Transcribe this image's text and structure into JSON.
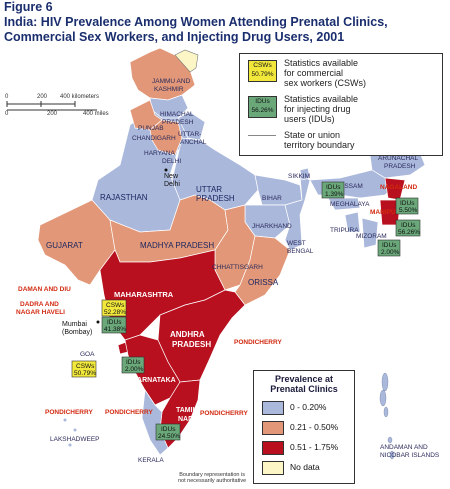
{
  "figure": {
    "label": "Figure 6",
    "title_line1": "India: HIV Prevalence Among Women Attending Prenatal Clinics,",
    "title_line2": "Commercial Sex Workers, and Injecting Drug Users, 2001"
  },
  "legend": {
    "csw_badge_line1": "CSWs",
    "csw_badge_line2": "50.79%",
    "csw_text_line1": "Statistics available",
    "csw_text_line2": "for commercial",
    "csw_text_line3": "sex workers (CSWs)",
    "idu_badge_line1": "IDUs",
    "idu_badge_line2": "56.26%",
    "idu_text_line1": "Statistics available",
    "idu_text_line2": "for injecting drug",
    "idu_text_line3": "users (IDUs)",
    "boundary_text_line1": "State or union",
    "boundary_text_line2": "territory boundary"
  },
  "prevalence_legend": {
    "title_line1": "Prevalence at",
    "title_line2": "Prenatal Clinics",
    "items": [
      {
        "label": "0 - 0.20%",
        "color": "#aab8dc"
      },
      {
        "label": "0.21 - 0.50%",
        "color": "#e29878"
      },
      {
        "label": "0.51 - 1.75%",
        "color": "#b8101e"
      },
      {
        "label": "No data",
        "color": "#fcf6c6"
      }
    ]
  },
  "scale": {
    "km_0": "0",
    "km_200": "200",
    "km_400": "400 kilometers",
    "mi_0": "0",
    "mi_200": "200",
    "mi_400": "400 miles"
  },
  "disclaimer_line1": "Boundary representation is",
  "disclaimer_line2": "not necessarily authoritative",
  "regions": {
    "jk": "JAMMU AND",
    "jk2": "KASHMIR",
    "hp": "HIMACHAL",
    "hp2": "PRADESH",
    "punjab": "PUNJAB",
    "chandigarh": "CHANDIGARH",
    "uttaranchal": "UTTAR-",
    "uttaranchal2": "ANCHAL",
    "haryana": "HARYANA",
    "delhi": "DELHI",
    "new_delhi": "New",
    "new_delhi2": "Delhi",
    "rajasthan": "RAJASTHAN",
    "up": "UTTAR",
    "up2": "PRADESH",
    "sikkim": "SIKKIM",
    "arunachal": "ARUNACHAL",
    "arunachal2": "PRADESH",
    "assam": "ASSAM",
    "meghalaya": "MEGHALAYA",
    "nagaland": "NAGALAND",
    "manipur": "MANIPUR",
    "tripura": "TRIPURA",
    "mizoram": "MIZORAM",
    "bihar": "BIHAR",
    "jharkhand": "JHARKHAND",
    "west_bengal": "WEST",
    "west_bengal2": "BENGAL",
    "gujarat": "GUJARAT",
    "mp": "MADHYA PRADESH",
    "chhattisgarh": "CHHATTISGARH",
    "orissa": "ORISSA",
    "daman": "DAMAN AND DIU",
    "dadra": "DADRA AND",
    "dadra2": "NAGAR HAVELI",
    "maharashtra": "MAHARASHTRA",
    "mumbai": "Mumbai",
    "mumbai2": "(Bombay)",
    "ap": "ANDHRA",
    "ap2": "PRADESH",
    "pondi_east": "PONDICHERRY",
    "goa": "GOA",
    "karnataka": "KARNATAKA",
    "tn": "TAMIL",
    "tn2": "NADU",
    "pondi_south": "PONDICHERRY",
    "pondi_west": "PONDICHERRY",
    "pondi_sw": "PONDICHERRY",
    "lakshadweep": "LAKSHADWEEP",
    "kerala": "KERALA",
    "andaman": "ANDAMAN AND",
    "andaman2": "NICOBAR ISLANDS"
  },
  "badges": {
    "manipur_idu": {
      "l1": "IDUs",
      "l2": "5.50%"
    },
    "meghalaya_idu": {
      "l1": "IDUs",
      "l2": "1.39%"
    },
    "mizoram_idu": {
      "l1": "IDUs",
      "l2": "56.26%"
    },
    "tripura_idu": {
      "l1": "IDUs",
      "l2": "2.00%"
    },
    "mumbai_csw": {
      "l1": "CSWs",
      "l2": "52.28%"
    },
    "mumbai_idu": {
      "l1": "IDUs",
      "l2": "41.38%"
    },
    "karnataka_idu": {
      "l1": "IDUs",
      "l2": "2.00%"
    },
    "goa_csw": {
      "l1": "CSWs",
      "l2": "50.79%"
    },
    "tn_idu": {
      "l1": "IDUs",
      "l2": "24.50%"
    }
  }
}
